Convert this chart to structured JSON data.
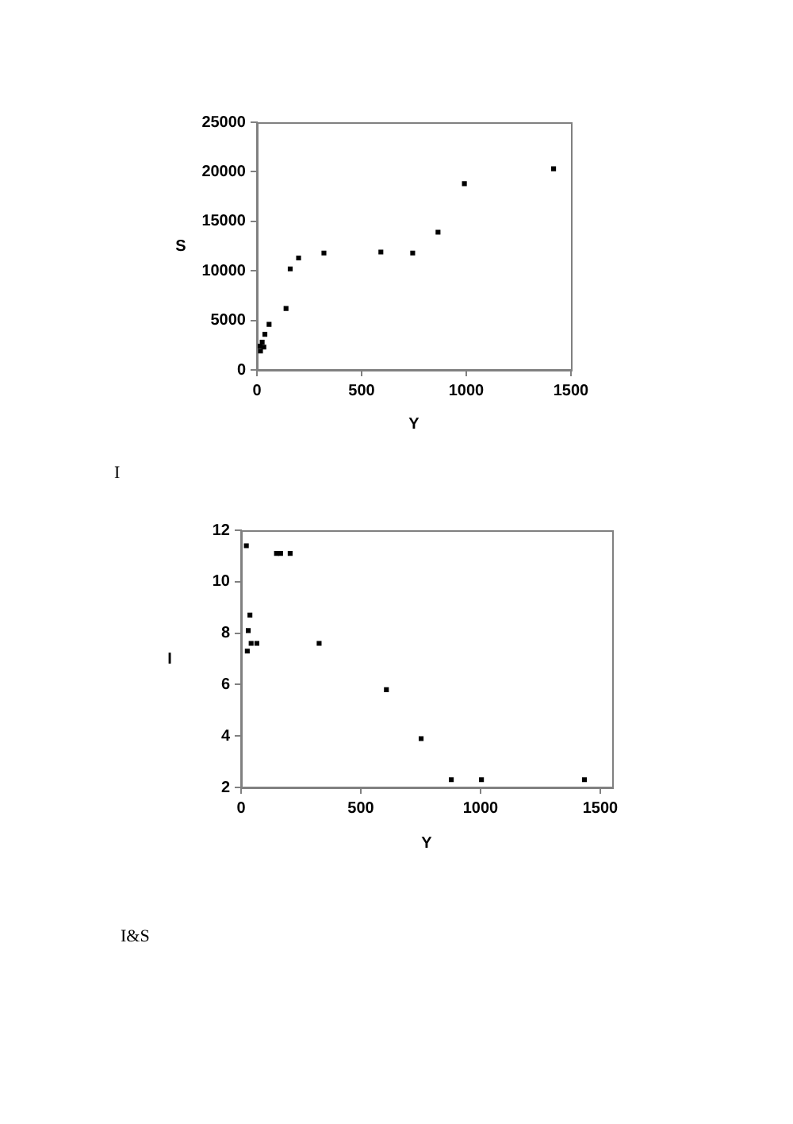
{
  "chart_data": [
    {
      "type": "scatter",
      "xlabel": "Y",
      "ylabel": "S",
      "x": [
        17,
        15,
        25,
        33,
        38,
        58,
        139,
        159,
        199,
        320,
        592,
        744,
        865,
        991,
        1417
      ],
      "values": [
        1900,
        2400,
        2800,
        2300,
        3600,
        4600,
        6200,
        10200,
        11300,
        11800,
        11900,
        11800,
        13900,
        18800,
        20300
      ],
      "color": "#000000",
      "marker": "square",
      "xlim": [
        0,
        1500
      ],
      "xticks": [
        0,
        500,
        1000,
        1500
      ],
      "ylim": [
        0,
        25000
      ],
      "yticks": [
        0,
        5000,
        10000,
        15000,
        20000,
        25000
      ],
      "annotations": [
        "I"
      ]
    },
    {
      "type": "scatter",
      "xlabel": "Y",
      "ylabel": "I",
      "x": [
        22,
        37,
        30,
        26,
        42,
        66,
        148,
        165,
        205,
        326,
        607,
        752,
        878,
        1004,
        1434
      ],
      "values": [
        11.4,
        8.7,
        8.1,
        7.3,
        7.6,
        7.6,
        11.1,
        11.1,
        11.1,
        7.6,
        5.8,
        3.9,
        2.3,
        2.3,
        2.3
      ],
      "color": "#000000",
      "marker": "square",
      "xlim": [
        0,
        1550
      ],
      "xticks": [
        0,
        500,
        1000,
        1500
      ],
      "ylim": [
        2,
        12
      ],
      "yticks": [
        2,
        4,
        6,
        8,
        10,
        12
      ],
      "annotations": [
        "I&S"
      ]
    }
  ]
}
